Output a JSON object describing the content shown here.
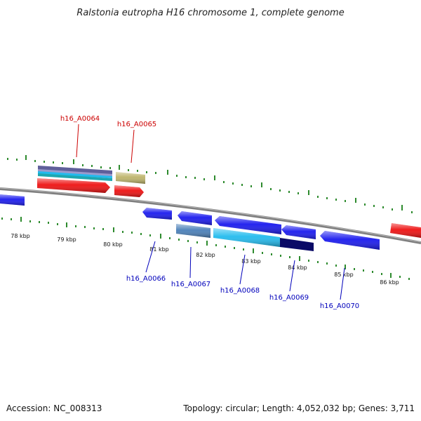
{
  "title": "Ralstonia eutropha H16 chromosome 1, complete genome",
  "accession": "Accession: NC_008313",
  "summary": "Topology: circular; Length: 4,052,032 bp; Genes: 3,711",
  "colors": {
    "backbone": "#7f7f7f",
    "tick": "#2e8b2e",
    "label_top": "#cc0000",
    "label_bottom": "#0000bb",
    "gene_red": "#ee1111",
    "gene_blue": "#1a1aee",
    "gene_tan": "#bdb46a",
    "gene_steelblue": "#4a7fb8",
    "gene_cyan": "#22bbee",
    "gene_navy": "#0a0a66"
  },
  "kbp_labels": [
    "78 kbp",
    "79 kbp",
    "80 kbp",
    "81 kbp",
    "82 kbp",
    "83 kbp",
    "84 kbp",
    "85 kbp",
    "86 kbp"
  ],
  "gene_labels_top": [
    "h16_A0064",
    "h16_A0065"
  ],
  "gene_labels_bottom": [
    "h16_A0066",
    "h16_A0067",
    "h16_A0068",
    "h16_A0069",
    "h16_A0070"
  ]
}
